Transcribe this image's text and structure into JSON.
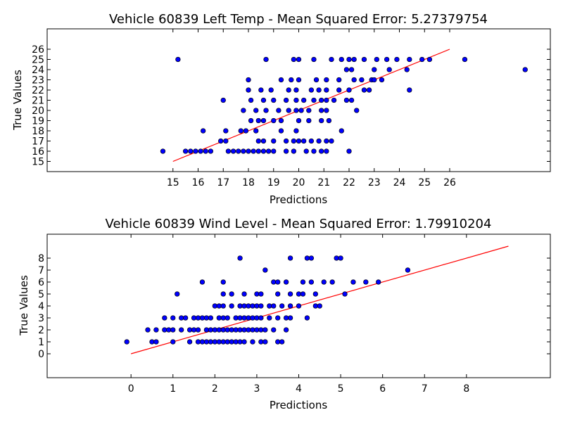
{
  "chart_data": [
    {
      "type": "scatter",
      "title": "Vehicle 60839 Left Temp - Mean Squared Error: 5.27379754",
      "xlabel": "Predictions",
      "ylabel": "True Values",
      "xlim": [
        10,
        30
      ],
      "ylim": [
        14,
        28
      ],
      "xticks": [
        15,
        16,
        17,
        18,
        19,
        20,
        21,
        22,
        23,
        24,
        25,
        26
      ],
      "yticks": [
        15,
        16,
        17,
        18,
        19,
        20,
        21,
        22,
        23,
        24,
        25,
        26
      ],
      "grid": false,
      "marker_color": "#0000ff",
      "line_color": "#ff0000",
      "fit_line": {
        "x": [
          15,
          26
        ],
        "y": [
          15,
          26
        ]
      },
      "series": [
        {
          "points": [
            [
              14.6,
              16
            ],
            [
              15.5,
              16
            ],
            [
              15.7,
              16
            ],
            [
              15.9,
              16
            ],
            [
              16.1,
              16
            ],
            [
              16.3,
              16
            ],
            [
              16.5,
              16
            ],
            [
              17.2,
              16
            ],
            [
              17.4,
              16
            ],
            [
              17.6,
              16
            ],
            [
              17.8,
              16
            ],
            [
              18.0,
              16
            ],
            [
              18.2,
              16
            ],
            [
              18.4,
              16
            ],
            [
              18.6,
              16
            ],
            [
              18.8,
              16
            ],
            [
              19.0,
              16
            ],
            [
              19.5,
              16
            ],
            [
              19.8,
              16
            ],
            [
              20.3,
              16
            ],
            [
              20.6,
              16
            ],
            [
              20.9,
              16
            ],
            [
              21.1,
              16
            ],
            [
              22.0,
              16
            ],
            [
              16.9,
              17
            ],
            [
              17.1,
              17
            ],
            [
              18.4,
              17
            ],
            [
              18.6,
              17
            ],
            [
              19.0,
              17
            ],
            [
              19.5,
              17
            ],
            [
              19.8,
              17
            ],
            [
              20.0,
              17
            ],
            [
              20.2,
              17
            ],
            [
              20.5,
              17
            ],
            [
              20.8,
              17
            ],
            [
              21.1,
              17
            ],
            [
              21.3,
              17
            ],
            [
              16.2,
              18
            ],
            [
              17.1,
              18
            ],
            [
              17.7,
              18
            ],
            [
              17.9,
              18
            ],
            [
              18.3,
              18
            ],
            [
              19.3,
              18
            ],
            [
              19.9,
              18
            ],
            [
              21.7,
              18
            ],
            [
              18.1,
              19
            ],
            [
              18.4,
              19
            ],
            [
              18.6,
              19
            ],
            [
              19.0,
              19
            ],
            [
              19.3,
              19
            ],
            [
              20.0,
              19
            ],
            [
              20.4,
              19
            ],
            [
              20.9,
              19
            ],
            [
              21.2,
              19
            ],
            [
              17.8,
              20
            ],
            [
              18.3,
              20
            ],
            [
              18.7,
              20
            ],
            [
              19.2,
              20
            ],
            [
              19.6,
              20
            ],
            [
              19.9,
              20
            ],
            [
              20.1,
              20
            ],
            [
              20.4,
              20
            ],
            [
              20.9,
              20
            ],
            [
              21.1,
              20
            ],
            [
              22.3,
              20
            ],
            [
              17.0,
              21
            ],
            [
              18.1,
              21
            ],
            [
              18.6,
              21
            ],
            [
              19.0,
              21
            ],
            [
              19.5,
              21
            ],
            [
              19.9,
              21
            ],
            [
              20.2,
              21
            ],
            [
              20.6,
              21
            ],
            [
              20.9,
              21
            ],
            [
              21.1,
              21
            ],
            [
              21.4,
              21
            ],
            [
              21.9,
              21
            ],
            [
              22.1,
              21
            ],
            [
              18.0,
              22
            ],
            [
              18.5,
              22
            ],
            [
              18.9,
              22
            ],
            [
              19.6,
              22
            ],
            [
              19.9,
              22
            ],
            [
              20.5,
              22
            ],
            [
              20.8,
              22
            ],
            [
              21.1,
              22
            ],
            [
              21.6,
              22
            ],
            [
              22.0,
              22
            ],
            [
              22.6,
              22
            ],
            [
              22.8,
              22
            ],
            [
              24.4,
              22
            ],
            [
              18.0,
              23
            ],
            [
              19.3,
              23
            ],
            [
              19.7,
              23
            ],
            [
              20.0,
              23
            ],
            [
              20.7,
              23
            ],
            [
              21.1,
              23
            ],
            [
              21.6,
              23
            ],
            [
              22.2,
              23
            ],
            [
              22.5,
              23
            ],
            [
              22.9,
              23
            ],
            [
              23.0,
              23
            ],
            [
              23.3,
              23
            ],
            [
              21.9,
              24
            ],
            [
              22.1,
              24
            ],
            [
              23.0,
              24
            ],
            [
              23.6,
              24
            ],
            [
              24.3,
              24
            ],
            [
              29.0,
              24
            ],
            [
              15.2,
              25
            ],
            [
              18.7,
              25
            ],
            [
              19.8,
              25
            ],
            [
              20.0,
              25
            ],
            [
              20.6,
              25
            ],
            [
              21.3,
              25
            ],
            [
              21.7,
              25
            ],
            [
              22.0,
              25
            ],
            [
              22.2,
              25
            ],
            [
              22.6,
              25
            ],
            [
              23.1,
              25
            ],
            [
              23.5,
              25
            ],
            [
              23.9,
              25
            ],
            [
              24.4,
              25
            ],
            [
              24.9,
              25
            ],
            [
              25.2,
              25
            ],
            [
              26.6,
              25
            ]
          ]
        }
      ]
    },
    {
      "type": "scatter",
      "title": "Vehicle 60839 Wind Level - Mean Squared Error: 1.79910204",
      "xlabel": "Predictions",
      "ylabel": "True Values",
      "xlim": [
        -2,
        10
      ],
      "ylim": [
        -2,
        10
      ],
      "xticks": [
        0,
        1,
        2,
        3,
        4,
        5,
        6,
        7,
        8
      ],
      "yticks": [
        0,
        1,
        2,
        3,
        4,
        5,
        6,
        7,
        8
      ],
      "grid": false,
      "marker_color": "#0000ff",
      "line_color": "#ff0000",
      "fit_line": {
        "x": [
          0,
          9
        ],
        "y": [
          0,
          9
        ]
      },
      "series": [
        {
          "points": [
            [
              -0.1,
              1
            ],
            [
              0.5,
              1
            ],
            [
              0.6,
              1
            ],
            [
              1.0,
              1
            ],
            [
              1.4,
              1
            ],
            [
              1.6,
              1
            ],
            [
              1.7,
              1
            ],
            [
              1.8,
              1
            ],
            [
              1.9,
              1
            ],
            [
              2.0,
              1
            ],
            [
              2.1,
              1
            ],
            [
              2.2,
              1
            ],
            [
              2.3,
              1
            ],
            [
              2.4,
              1
            ],
            [
              2.5,
              1
            ],
            [
              2.6,
              1
            ],
            [
              2.7,
              1
            ],
            [
              2.9,
              1
            ],
            [
              3.1,
              1
            ],
            [
              3.2,
              1
            ],
            [
              3.5,
              1
            ],
            [
              3.6,
              1
            ],
            [
              0.4,
              2
            ],
            [
              0.6,
              2
            ],
            [
              0.8,
              2
            ],
            [
              0.9,
              2
            ],
            [
              1.0,
              2
            ],
            [
              1.2,
              2
            ],
            [
              1.4,
              2
            ],
            [
              1.5,
              2
            ],
            [
              1.6,
              2
            ],
            [
              1.8,
              2
            ],
            [
              1.9,
              2
            ],
            [
              2.0,
              2
            ],
            [
              2.1,
              2
            ],
            [
              2.2,
              2
            ],
            [
              2.3,
              2
            ],
            [
              2.4,
              2
            ],
            [
              2.5,
              2
            ],
            [
              2.6,
              2
            ],
            [
              2.7,
              2
            ],
            [
              2.8,
              2
            ],
            [
              2.9,
              2
            ],
            [
              3.0,
              2
            ],
            [
              3.1,
              2
            ],
            [
              3.2,
              2
            ],
            [
              3.4,
              2
            ],
            [
              3.7,
              2
            ],
            [
              0.8,
              3
            ],
            [
              1.0,
              3
            ],
            [
              1.2,
              3
            ],
            [
              1.3,
              3
            ],
            [
              1.5,
              3
            ],
            [
              1.6,
              3
            ],
            [
              1.7,
              3
            ],
            [
              1.8,
              3
            ],
            [
              1.9,
              3
            ],
            [
              2.1,
              3
            ],
            [
              2.2,
              3
            ],
            [
              2.3,
              3
            ],
            [
              2.5,
              3
            ],
            [
              2.6,
              3
            ],
            [
              2.7,
              3
            ],
            [
              2.8,
              3
            ],
            [
              2.9,
              3
            ],
            [
              3.0,
              3
            ],
            [
              3.1,
              3
            ],
            [
              3.3,
              3
            ],
            [
              3.5,
              3
            ],
            [
              3.7,
              3
            ],
            [
              3.8,
              3
            ],
            [
              4.2,
              3
            ],
            [
              2.0,
              4
            ],
            [
              2.1,
              4
            ],
            [
              2.2,
              4
            ],
            [
              2.4,
              4
            ],
            [
              2.6,
              4
            ],
            [
              2.7,
              4
            ],
            [
              2.8,
              4
            ],
            [
              2.9,
              4
            ],
            [
              3.0,
              4
            ],
            [
              3.1,
              4
            ],
            [
              3.3,
              4
            ],
            [
              3.4,
              4
            ],
            [
              3.6,
              4
            ],
            [
              3.8,
              4
            ],
            [
              4.0,
              4
            ],
            [
              4.4,
              4
            ],
            [
              4.5,
              4
            ],
            [
              1.1,
              5
            ],
            [
              2.2,
              5
            ],
            [
              2.4,
              5
            ],
            [
              2.7,
              5
            ],
            [
              3.0,
              5
            ],
            [
              3.1,
              5
            ],
            [
              3.5,
              5
            ],
            [
              3.8,
              5
            ],
            [
              4.0,
              5
            ],
            [
              4.1,
              5
            ],
            [
              4.4,
              5
            ],
            [
              5.1,
              5
            ],
            [
              1.7,
              6
            ],
            [
              2.2,
              6
            ],
            [
              3.4,
              6
            ],
            [
              3.5,
              6
            ],
            [
              3.7,
              6
            ],
            [
              4.1,
              6
            ],
            [
              4.3,
              6
            ],
            [
              4.6,
              6
            ],
            [
              4.8,
              6
            ],
            [
              5.3,
              6
            ],
            [
              5.6,
              6
            ],
            [
              5.9,
              6
            ],
            [
              3.2,
              7
            ],
            [
              6.6,
              7
            ],
            [
              2.6,
              8
            ],
            [
              3.8,
              8
            ],
            [
              4.2,
              8
            ],
            [
              4.3,
              8
            ],
            [
              4.9,
              8
            ],
            [
              5.0,
              8
            ]
          ]
        }
      ]
    }
  ]
}
